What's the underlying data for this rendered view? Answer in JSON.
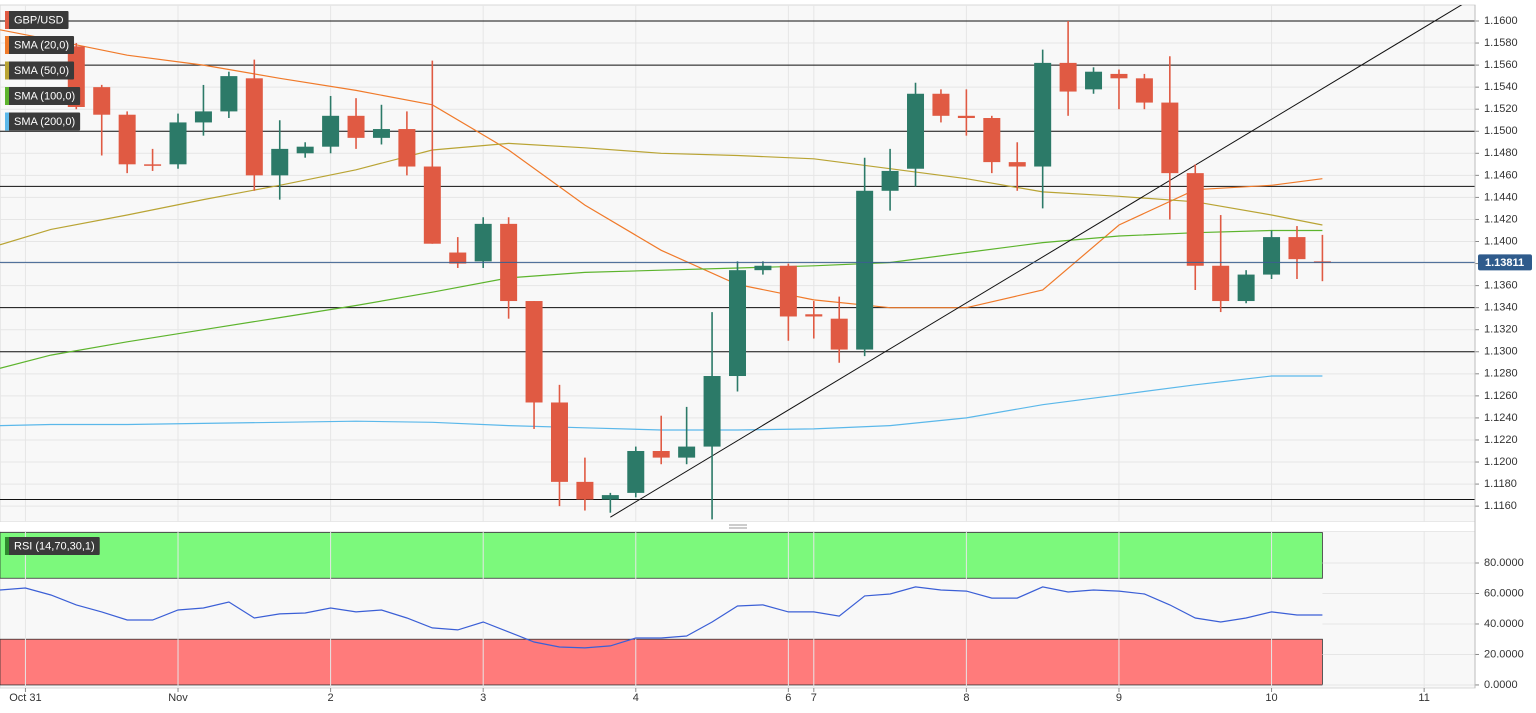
{
  "chart_data": [
    {
      "type": "candlestick",
      "name": "GBP/USD",
      "up_color": "#2c7a68",
      "down_color": "#e05a43",
      "candles": {
        "x": [
          0,
          1,
          2,
          3,
          4,
          5,
          6,
          7,
          8,
          9,
          10,
          11,
          12,
          13,
          14,
          15,
          16,
          17,
          18,
          19,
          20,
          21,
          22,
          23,
          24,
          25,
          26,
          27,
          28,
          29,
          30,
          31,
          32,
          33,
          34,
          35,
          36,
          37,
          38,
          39,
          40,
          41,
          42,
          43,
          44,
          45,
          46,
          47,
          48,
          49
        ],
        "open": [
          1.1577,
          1.154,
          1.1515,
          1.147,
          1.147,
          1.1508,
          1.1518,
          1.1548,
          1.146,
          1.148,
          1.1486,
          1.1514,
          1.1494,
          1.1502,
          1.1468,
          1.139,
          1.1382,
          1.1416,
          1.1346,
          1.1254,
          1.1182,
          1.1166,
          1.1172,
          1.121,
          1.1204,
          1.1214,
          1.1278,
          1.1374,
          1.1378,
          1.1334,
          1.133,
          1.1302,
          1.1446,
          1.1466,
          1.1534,
          1.1514,
          1.1512,
          1.1472,
          1.1468,
          1.1562,
          1.1538,
          1.1552,
          1.1548,
          1.1526,
          1.1462,
          1.1378,
          1.1346,
          1.137,
          1.1404,
          1.1382
        ],
        "high": [
          1.158,
          1.1542,
          1.1518,
          1.1484,
          1.1516,
          1.1542,
          1.1554,
          1.1565,
          1.151,
          1.149,
          1.1532,
          1.153,
          1.1524,
          1.1518,
          1.1564,
          1.1404,
          1.1422,
          1.1422,
          1.1346,
          1.127,
          1.1204,
          1.1172,
          1.1214,
          1.1242,
          1.125,
          1.1336,
          1.1382,
          1.1382,
          1.138,
          1.1346,
          1.135,
          1.1476,
          1.1484,
          1.1544,
          1.1538,
          1.1538,
          1.1514,
          1.149,
          1.1574,
          1.16,
          1.1558,
          1.1556,
          1.1552,
          1.1568,
          1.147,
          1.1424,
          1.1374,
          1.141,
          1.1414,
          1.1406
        ],
        "low": [
          1.152,
          1.1478,
          1.1462,
          1.1464,
          1.1466,
          1.1496,
          1.1512,
          1.1446,
          1.1438,
          1.1476,
          1.148,
          1.1484,
          1.1488,
          1.146,
          1.1398,
          1.1376,
          1.1376,
          1.133,
          1.123,
          1.116,
          1.1156,
          1.1154,
          1.1168,
          1.1198,
          1.1198,
          1.1148,
          1.1264,
          1.137,
          1.131,
          1.1312,
          1.129,
          1.1296,
          1.1428,
          1.145,
          1.1508,
          1.1496,
          1.1462,
          1.1446,
          1.143,
          1.1514,
          1.1534,
          1.152,
          1.152,
          1.142,
          1.1356,
          1.1336,
          1.1344,
          1.1366,
          1.1366,
          1.1364
        ],
        "close": [
          1.1522,
          1.1515,
          1.147,
          1.147,
          1.1508,
          1.1518,
          1.155,
          1.146,
          1.1484,
          1.1486,
          1.1514,
          1.1494,
          1.1502,
          1.1468,
          1.1398,
          1.138,
          1.1416,
          1.1346,
          1.1254,
          1.1182,
          1.1166,
          1.117,
          1.121,
          1.1204,
          1.1214,
          1.1278,
          1.1374,
          1.1378,
          1.1332,
          1.1332,
          1.1302,
          1.1446,
          1.1464,
          1.1534,
          1.1514,
          1.1512,
          1.1472,
          1.1468,
          1.1562,
          1.1536,
          1.1554,
          1.1548,
          1.1526,
          1.1462,
          1.1378,
          1.1346,
          1.137,
          1.1404,
          1.1384,
          1.1381
        ]
      },
      "x": [
        -3,
        -1,
        2,
        5,
        8,
        11,
        14,
        17,
        20,
        23,
        26,
        29,
        32,
        35,
        38,
        41,
        44,
        47,
        49
      ],
      "series": [
        {
          "name": "SMA (20,0)",
          "color": "#f07a2a",
          "values": [
            1.1592,
            1.1583,
            1.1569,
            1.156,
            1.1548,
            1.1537,
            1.1524,
            1.1483,
            1.1433,
            1.1392,
            1.1361,
            1.1347,
            1.134,
            1.134,
            1.1356,
            1.1415,
            1.1447,
            1.1451,
            1.1457
          ]
        },
        {
          "name": "SMA (50,0)",
          "color": "#b9a434",
          "values": [
            1.1397,
            1.1411,
            1.1424,
            1.1438,
            1.1451,
            1.1465,
            1.1483,
            1.1489,
            1.1485,
            1.148,
            1.1478,
            1.1475,
            1.1466,
            1.1457,
            1.1445,
            1.1441,
            1.1436,
            1.1424,
            1.1415
          ]
        },
        {
          "name": "SMA (100,0)",
          "color": "#5db42d",
          "values": [
            1.1285,
            1.1297,
            1.1309,
            1.132,
            1.1331,
            1.1342,
            1.1354,
            1.1367,
            1.1372,
            1.1374,
            1.1376,
            1.1378,
            1.1381,
            1.139,
            1.1399,
            1.1405,
            1.1408,
            1.141,
            1.141
          ]
        },
        {
          "name": "SMA (200,0)",
          "color": "#5bb8ea",
          "values": [
            1.1233,
            1.1234,
            1.1234,
            1.1235,
            1.1236,
            1.1237,
            1.1236,
            1.1233,
            1.1231,
            1.1229,
            1.1229,
            1.123,
            1.1233,
            1.124,
            1.1252,
            1.1261,
            1.127,
            1.1278,
            1.1278
          ]
        }
      ],
      "hlines": [
        1.16,
        1.156,
        1.15,
        1.145,
        1.134,
        1.13,
        1.1166
      ],
      "last_price": 1.13811,
      "trendline": {
        "x": [
          21,
          54.5
        ],
        "y": [
          1.115,
          1.1615
        ]
      },
      "xlim": [
        -3,
        55
      ],
      "ylim": [
        1.11456,
        1.16145
      ],
      "yticks": [
        {
          "value": 1.116,
          "label": "1.1160"
        },
        {
          "value": 1.118,
          "label": "1.1180"
        },
        {
          "value": 1.12,
          "label": "1.1200"
        },
        {
          "value": 1.122,
          "label": "1.1220"
        },
        {
          "value": 1.124,
          "label": "1.1240"
        },
        {
          "value": 1.126,
          "label": "1.1260"
        },
        {
          "value": 1.128,
          "label": "1.1280"
        },
        {
          "value": 1.13,
          "label": "1.1300"
        },
        {
          "value": 1.132,
          "label": "1.1320"
        },
        {
          "value": 1.134,
          "label": "1.1340"
        },
        {
          "value": 1.136,
          "label": "1.1360"
        },
        {
          "value": 1.138,
          "label": "1.1380"
        },
        {
          "value": 1.14,
          "label": "1.1400"
        },
        {
          "value": 1.142,
          "label": "1.1420"
        },
        {
          "value": 1.144,
          "label": "1.1440"
        },
        {
          "value": 1.146,
          "label": "1.1460"
        },
        {
          "value": 1.148,
          "label": "1.1480"
        },
        {
          "value": 1.15,
          "label": "1.1500"
        },
        {
          "value": 1.152,
          "label": "1.1520"
        },
        {
          "value": 1.154,
          "label": "1.1540"
        },
        {
          "value": 1.156,
          "label": "1.1560"
        },
        {
          "value": 1.158,
          "label": "1.1580"
        },
        {
          "value": 1.16,
          "label": "1.1600"
        }
      ],
      "grid": true
    },
    {
      "type": "line",
      "title": "RSI (14,70,30,1)",
      "x": [
        -3,
        -2,
        -1,
        0,
        1,
        2,
        3,
        4,
        5,
        6,
        7,
        8,
        9,
        10,
        11,
        12,
        13,
        14,
        15,
        16,
        17,
        18,
        19,
        20,
        21,
        22,
        23,
        24,
        25,
        26,
        27,
        28,
        29,
        30,
        31,
        32,
        33,
        34,
        35,
        36,
        37,
        38,
        39,
        40,
        41,
        42,
        43,
        44,
        45,
        46,
        47,
        48,
        49
      ],
      "values": [
        62.3,
        63.6,
        59.0,
        52.5,
        47.9,
        42.6,
        42.6,
        49.2,
        50.5,
        54.4,
        43.9,
        46.6,
        47.2,
        50.5,
        47.9,
        49.2,
        43.9,
        37.4,
        36.1,
        41.3,
        34.8,
        28.2,
        24.9,
        24.3,
        25.6,
        30.8,
        30.8,
        32.1,
        41.3,
        51.8,
        52.5,
        47.9,
        47.9,
        45.2,
        58.4,
        59.7,
        64.3,
        62.3,
        61.6,
        57.0,
        57.0,
        64.3,
        61.0,
        62.3,
        61.6,
        59.7,
        52.5,
        43.9,
        41.3,
        43.9,
        47.9,
        45.9,
        45.9
      ],
      "color": "#3b5fd6",
      "zones": [
        {
          "from": 70,
          "to": 100,
          "color": "#7cf97c"
        },
        {
          "from": 0,
          "to": 30,
          "color": "#ff7b7b"
        }
      ],
      "xlim": [
        -3,
        55
      ],
      "ylim": [
        -2,
        101
      ],
      "yticks": [
        {
          "value": 0,
          "label": "0.0000"
        },
        {
          "value": 20,
          "label": "20.0000"
        },
        {
          "value": 40,
          "label": "40.0000"
        },
        {
          "value": 60,
          "label": "60.0000"
        },
        {
          "value": 80,
          "label": "80.0000"
        }
      ],
      "xticks": [
        {
          "value": -2,
          "label": "Oct 31"
        },
        {
          "value": 4,
          "label": "Nov"
        },
        {
          "value": 10,
          "label": "2"
        },
        {
          "value": 16,
          "label": "3"
        },
        {
          "value": 22,
          "label": "4"
        },
        {
          "value": 28,
          "label": "6"
        },
        {
          "value": 29,
          "label": "7"
        },
        {
          "value": 35,
          "label": "8"
        },
        {
          "value": 41,
          "label": "9"
        },
        {
          "value": 47,
          "label": "10"
        },
        {
          "value": 53,
          "label": "11"
        }
      ],
      "grid": true
    }
  ]
}
